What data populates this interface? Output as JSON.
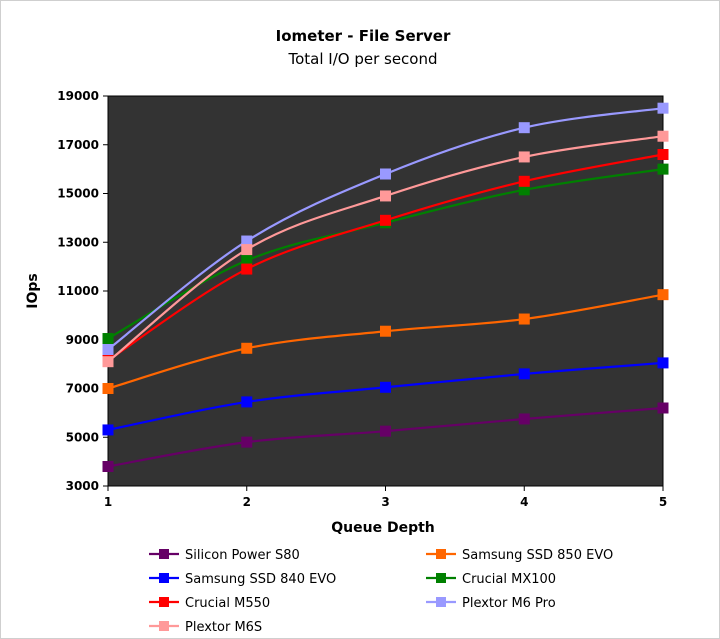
{
  "chart_data": {
    "type": "line",
    "title": "Iometer - File Server",
    "subtitle": "Total I/O per second",
    "xlabel": "Queue Depth",
    "ylabel": "IOps",
    "x": [
      1,
      2,
      3,
      4,
      5
    ],
    "ylim": [
      3000,
      19000
    ],
    "yticks": [
      3000,
      5000,
      7000,
      9000,
      11000,
      13000,
      15000,
      17000,
      19000
    ],
    "grid": false,
    "plot_background": "#333333",
    "legend_position": "bottom",
    "series": [
      {
        "name": "Silicon Power S80",
        "color": "#660066",
        "values": [
          3800,
          4800,
          5250,
          5750,
          6200
        ]
      },
      {
        "name": "Samsung SSD 850 EVO",
        "color": "#ff6600",
        "values": [
          7000,
          8650,
          9350,
          9850,
          10850
        ]
      },
      {
        "name": "Samsung SSD 840 EVO",
        "color": "#0000ff",
        "values": [
          5300,
          6450,
          7050,
          7600,
          8050
        ]
      },
      {
        "name": "Crucial MX100",
        "color": "#008000",
        "values": [
          9050,
          12250,
          13800,
          15150,
          16000
        ]
      },
      {
        "name": "Crucial M550",
        "color": "#ff0000",
        "values": [
          8150,
          11900,
          13900,
          15500,
          16600
        ]
      },
      {
        "name": "Plextor M6 Pro",
        "color": "#9999ff",
        "values": [
          8600,
          13050,
          15800,
          17700,
          18500
        ]
      },
      {
        "name": "Plextor M6S",
        "color": "#ff9999",
        "values": [
          8100,
          12700,
          14900,
          16500,
          17350
        ]
      }
    ]
  }
}
